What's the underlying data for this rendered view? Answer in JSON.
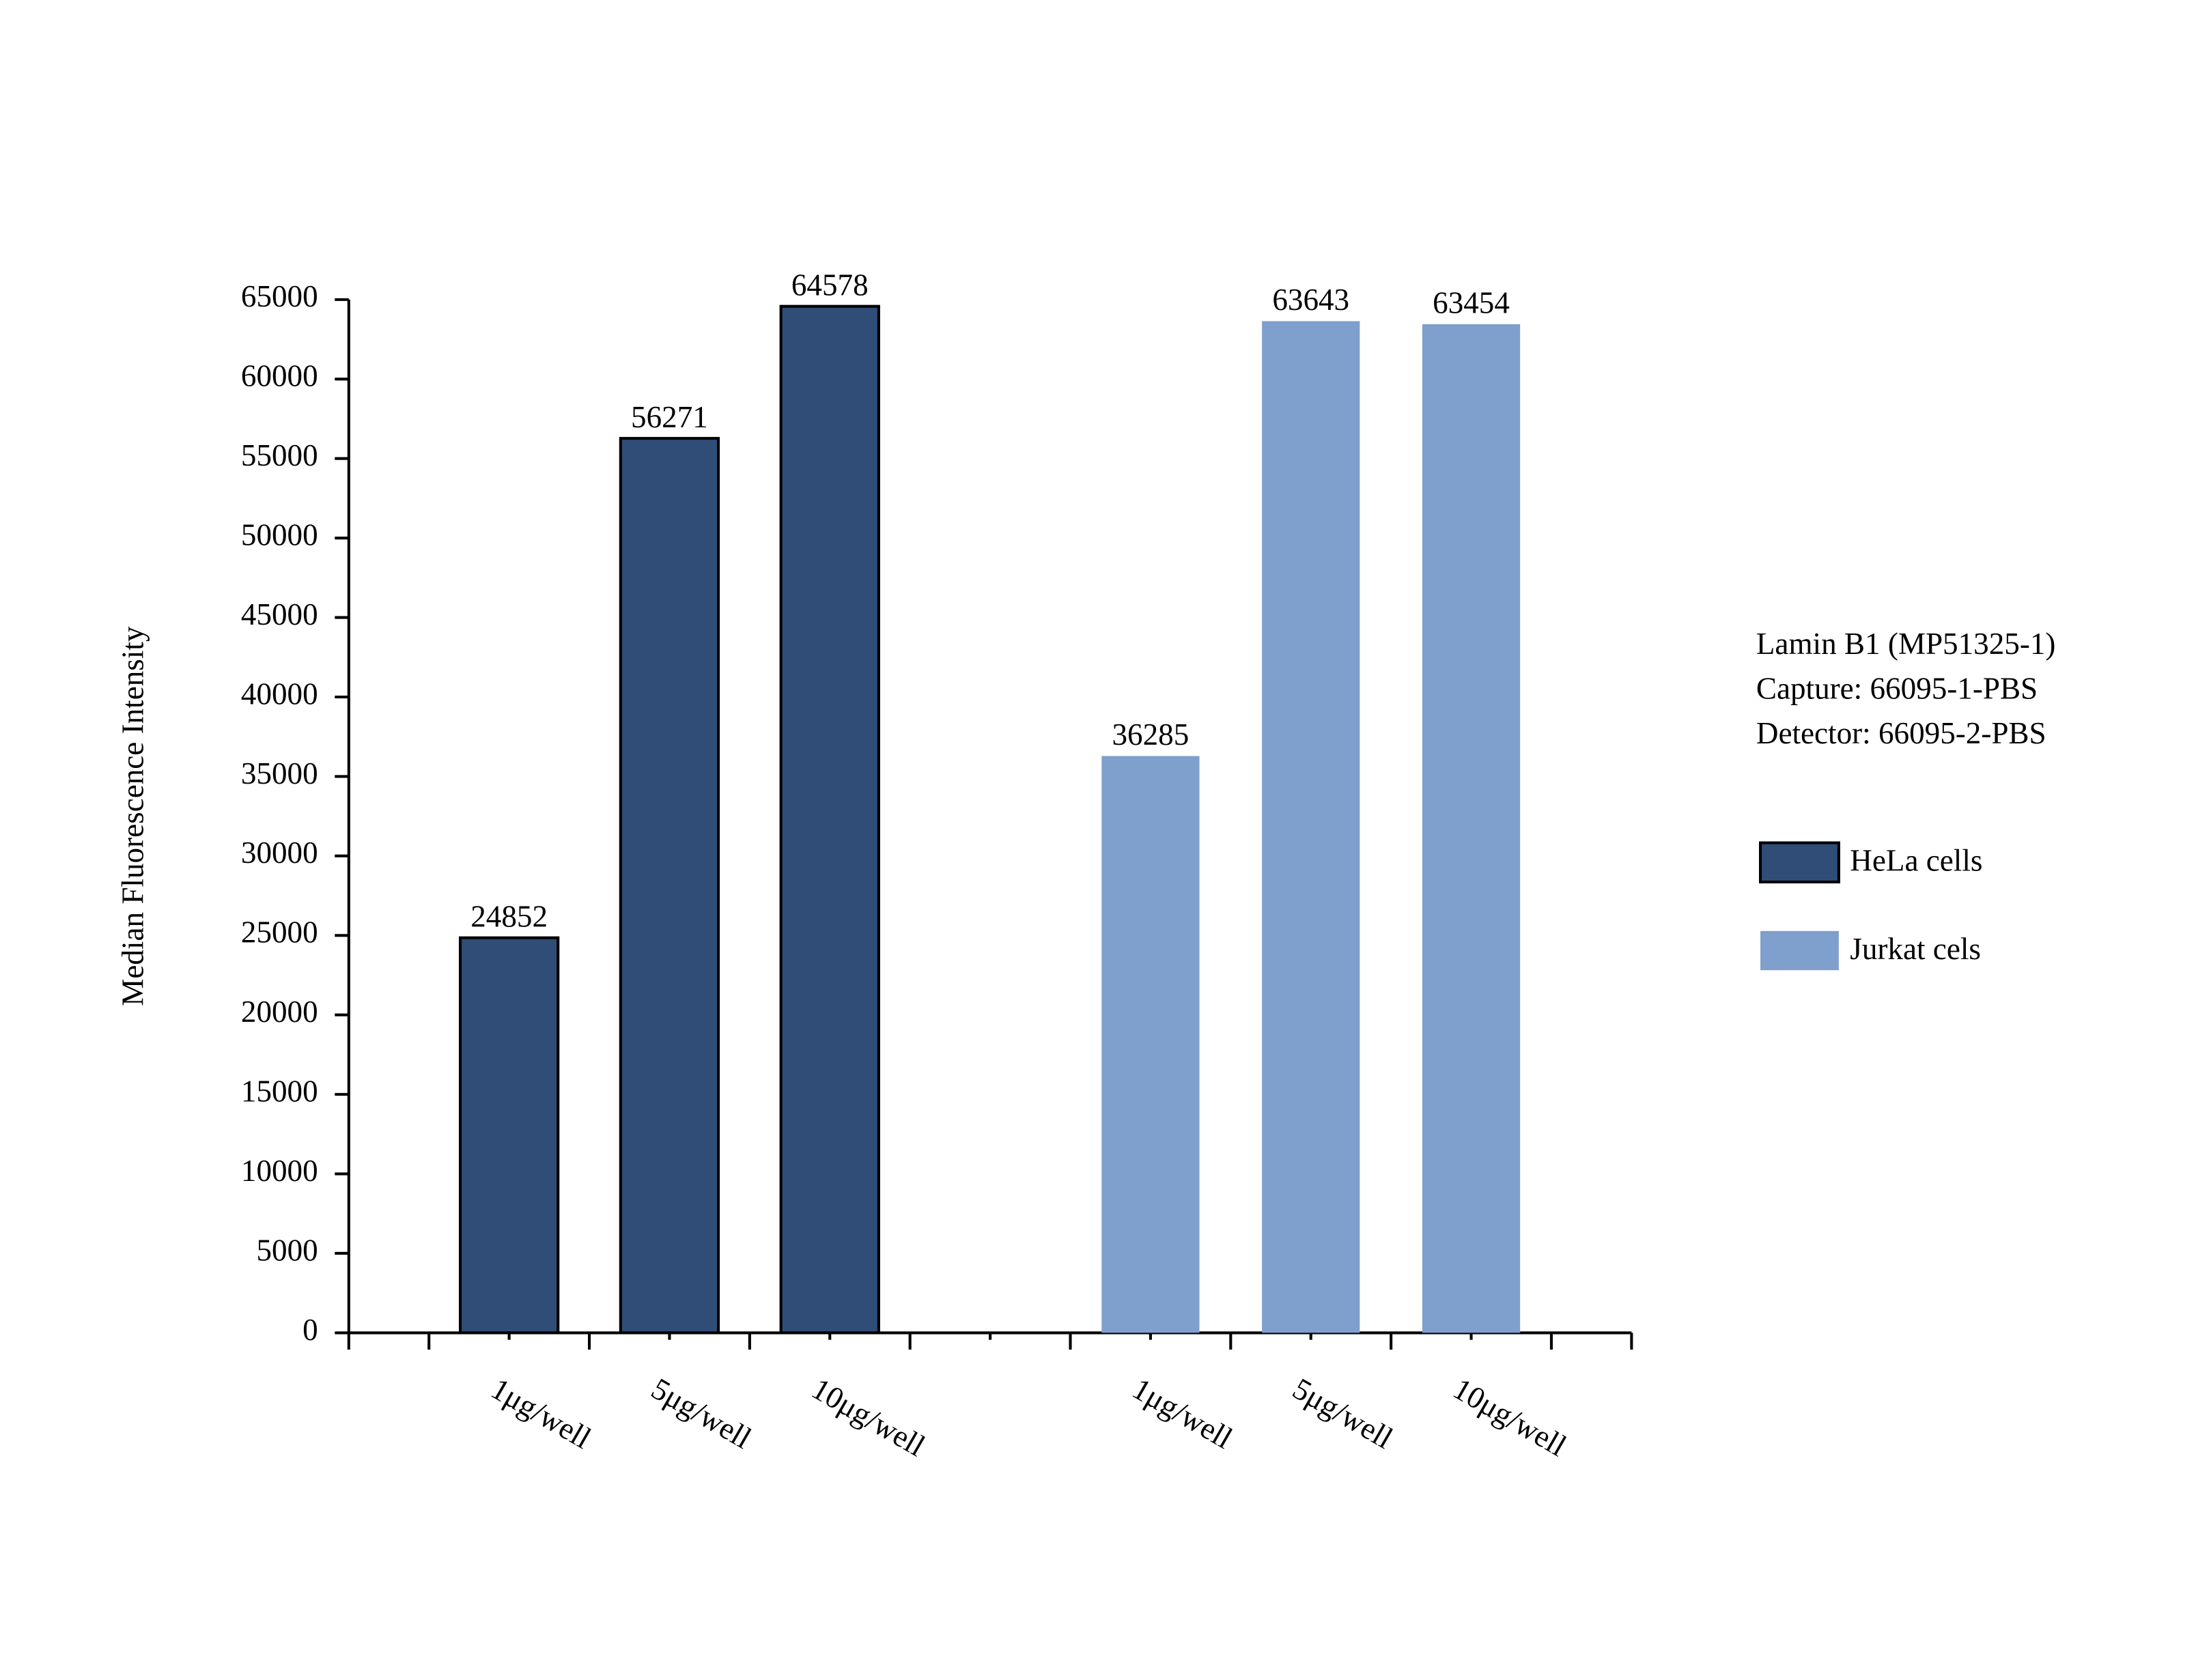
{
  "chart_data": {
    "type": "bar",
    "y_label": "Median Fluorescence Intensity",
    "annotations": [
      "Lamin B1 (MP51325-1)",
      "Capture: 66095-1-PBS",
      "Detector: 66095-2-PBS"
    ],
    "categories": [
      "1μg/well",
      "5μg/well",
      "10μg/well",
      null,
      "1μg/well",
      "5μg/well",
      "10μg/well"
    ],
    "series": [
      {
        "name": "HeLa cells",
        "color": "#2f4d77",
        "edgecolor": "#000000",
        "values": [
          24852,
          56271,
          64578,
          null,
          null,
          null,
          null
        ]
      },
      {
        "name": "Jurkat cels",
        "color": "#7f9fcc",
        "values": [
          null,
          null,
          null,
          null,
          36285,
          63643,
          63454
        ]
      }
    ],
    "ylim": [
      0,
      65000
    ],
    "yticks": [
      0,
      5000,
      10000,
      15000,
      20000,
      25000,
      30000,
      35000,
      40000,
      45000,
      50000,
      55000,
      60000,
      65000
    ],
    "grid": false
  }
}
